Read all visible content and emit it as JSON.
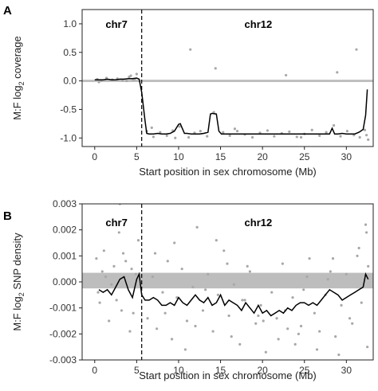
{
  "chart_data": [
    {
      "panel": "A",
      "type": "scatter",
      "title": "",
      "xlabel": "Start position in sex chromosome (Mb)",
      "ylabel": "M:F log2 coverage",
      "ylabel_parts": [
        "M:F log",
        "2",
        " coverage"
      ],
      "xlim": [
        -1.5,
        33.2
      ],
      "ylim": [
        -1.15,
        1.25
      ],
      "xticks": [
        0,
        5,
        10,
        15,
        20,
        25,
        30
      ],
      "yticks": [
        1.0,
        0.5,
        0.0,
        -0.5,
        -1.0
      ],
      "ytick_labels": [
        "1.0",
        "0.5",
        "0.0",
        "-0.5",
        "-1.0"
      ],
      "grid": false,
      "boundary_x": 5.6,
      "reference_band": {
        "y": 0.0,
        "half_width": 0.02,
        "color": "#bdbdbd"
      },
      "region_labels": [
        {
          "text": "chr7",
          "x": 2.6,
          "y": 1.0
        },
        {
          "text": "chr12",
          "x": 19.5,
          "y": 1.0
        }
      ],
      "series": [
        {
          "kind": "smoothed_line",
          "color": "#000000",
          "x": [
            0,
            0.5,
            1,
            1.5,
            2,
            2.5,
            3,
            3.5,
            4,
            4.5,
            5,
            5.3,
            5.6,
            5.8,
            6.0,
            6.2,
            6.5,
            7,
            7.5,
            8,
            8.5,
            9,
            9.5,
            10,
            10.2,
            10.4,
            10.7,
            11,
            11.5,
            12,
            12.5,
            13,
            13.5,
            13.8,
            14,
            14.5,
            14.8,
            15.1,
            15.5,
            16,
            17,
            18,
            19,
            20,
            21,
            22,
            23,
            24,
            25,
            26,
            27,
            28,
            28.3,
            28.6,
            29,
            29.5,
            30,
            30.5,
            31,
            31.5,
            32,
            32.3,
            32.5
          ],
          "y": [
            0.02,
            0.02,
            0.02,
            0.03,
            0.02,
            0.02,
            0.03,
            0.03,
            0.04,
            0.04,
            0.05,
            0.03,
            -0.2,
            -0.45,
            -0.7,
            -0.92,
            -0.93,
            -0.93,
            -0.92,
            -0.93,
            -0.93,
            -0.92,
            -0.88,
            -0.76,
            -0.75,
            -0.82,
            -0.92,
            -0.92,
            -0.93,
            -0.93,
            -0.93,
            -0.92,
            -0.9,
            -0.58,
            -0.57,
            -0.58,
            -0.88,
            -0.93,
            -0.93,
            -0.93,
            -0.93,
            -0.93,
            -0.93,
            -0.93,
            -0.93,
            -0.93,
            -0.93,
            -0.93,
            -0.93,
            -0.93,
            -0.93,
            -0.93,
            -0.83,
            -0.93,
            -0.93,
            -0.92,
            -0.93,
            -0.93,
            -0.93,
            -0.9,
            -0.85,
            -0.6,
            -0.15
          ]
        },
        {
          "kind": "points",
          "color": "#a8a8a8",
          "x": [
            0.3,
            0.8,
            1.4,
            2.1,
            2.7,
            3.3,
            4.1,
            4.6,
            5.0,
            0.5,
            3.8,
            4.3,
            4.8,
            6.2,
            7.0,
            7.8,
            8.6,
            9.3,
            10.1,
            11.2,
            11.9,
            12.6,
            13.4,
            14.2,
            15.3,
            16.1,
            17.0,
            17.9,
            18.8,
            19.7,
            20.6,
            21.4,
            22.3,
            23.2,
            24.1,
            25.0,
            25.9,
            26.8,
            27.6,
            28.5,
            29.3,
            30.1,
            30.9,
            31.6,
            32.2,
            11.4,
            14.4,
            22.8,
            28.9,
            31.2,
            6.8,
            9.6,
            16.7,
            24.6,
            32.4,
            32.6
          ],
          "y": [
            0.03,
            0.0,
            0.05,
            0.02,
            0.04,
            0.01,
            0.07,
            0.02,
            0.12,
            -0.02,
            0.0,
            0.09,
            0.03,
            -0.88,
            -0.98,
            -0.9,
            -0.96,
            -0.87,
            -0.8,
            -0.99,
            -0.91,
            -0.88,
            -0.97,
            -0.55,
            -0.9,
            -0.96,
            -0.88,
            -0.94,
            -0.99,
            -0.91,
            -0.87,
            -0.97,
            -0.92,
            -0.89,
            -0.98,
            -0.93,
            -0.86,
            -0.96,
            -0.9,
            -0.78,
            -0.97,
            -0.88,
            -0.95,
            -0.99,
            -0.86,
            0.55,
            0.22,
            0.1,
            0.15,
            0.55,
            -0.82,
            -1.0,
            -0.84,
            -0.99,
            -0.95,
            -1.03
          ]
        }
      ]
    },
    {
      "panel": "B",
      "type": "scatter",
      "title": "",
      "xlabel": "Start position in sex chromosome (Mb)",
      "ylabel": "M:F log2 SNP density",
      "ylabel_parts": [
        "M:F log",
        "2",
        " SNP density"
      ],
      "xlim": [
        -1.5,
        33.2
      ],
      "ylim": [
        -0.003,
        0.003
      ],
      "xticks": [
        0,
        5,
        10,
        15,
        20,
        25,
        30
      ],
      "yticks": [
        0.003,
        0.002,
        0.001,
        0.0,
        -0.001,
        -0.002,
        -0.003
      ],
      "ytick_labels": [
        "0.003",
        "0.002",
        "0.001",
        "0.000",
        "-0.001",
        "-0.002",
        "-0.003"
      ],
      "grid": false,
      "boundary_x": 5.6,
      "reference_band": {
        "y": 5e-05,
        "half_width": 0.0003,
        "color": "#bdbdbd"
      },
      "region_labels": [
        {
          "text": "chr7",
          "x": 2.6,
          "y": 0.0023
        },
        {
          "text": "chr12",
          "x": 19.5,
          "y": 0.0023
        }
      ],
      "series": [
        {
          "kind": "smoothed_line",
          "color": "#000000",
          "x": [
            0.5,
            1,
            1.5,
            2,
            2.5,
            3,
            3.5,
            4,
            4.5,
            5,
            5.3,
            5.6,
            6,
            6.5,
            7,
            7.5,
            8,
            8.5,
            9,
            9.5,
            10,
            10.5,
            11,
            11.5,
            12,
            12.5,
            13,
            13.5,
            14,
            14.5,
            15,
            15.5,
            16,
            16.5,
            17,
            17.5,
            18,
            18.5,
            19,
            19.5,
            20,
            20.5,
            21,
            21.5,
            22,
            22.5,
            23,
            23.5,
            24,
            24.5,
            25,
            25.5,
            26,
            26.5,
            27,
            27.5,
            28,
            28.5,
            29,
            29.5,
            30,
            30.5,
            31,
            31.5,
            32,
            32.3,
            32.6
          ],
          "y": [
            -0.0003,
            -0.0004,
            -0.0003,
            -0.0005,
            -0.0002,
            0.0001,
            0.0002,
            -0.0003,
            -0.0006,
            0.0001,
            0.0003,
            -0.0005,
            -0.0007,
            -0.0007,
            -0.0006,
            -0.0007,
            -0.0009,
            -0.0009,
            -0.0008,
            -0.0009,
            -0.0006,
            -0.0008,
            -0.0009,
            -0.0007,
            -0.0005,
            -0.0007,
            -0.0008,
            -0.0006,
            -0.0009,
            -0.0008,
            -0.0005,
            -0.0009,
            -0.0007,
            -0.0008,
            -0.0009,
            -0.0011,
            -0.0008,
            -0.001,
            -0.0012,
            -0.0009,
            -0.0012,
            -0.0011,
            -0.0013,
            -0.0012,
            -0.0011,
            -0.0012,
            -0.001,
            -0.0011,
            -0.0009,
            -0.0008,
            -0.0008,
            -0.0009,
            -0.0008,
            -0.0009,
            -0.0007,
            -0.0005,
            -0.0003,
            -0.0004,
            -0.0005,
            -0.0007,
            -0.0006,
            -0.0005,
            -0.0004,
            -0.0003,
            -0.0002,
            0.0003,
            0.0001
          ]
        },
        {
          "kind": "points",
          "color": "#a8a8a8",
          "x": [
            0.2,
            0.6,
            1.1,
            1.7,
            2.3,
            2.9,
            3.2,
            3.7,
            4.2,
            4.9,
            0.4,
            1.3,
            2.6,
            3.4,
            4.6,
            5.2,
            0.9,
            2.0,
            3.0,
            4.4,
            6.3,
            6.9,
            7.4,
            8.1,
            8.7,
            9.2,
            9.8,
            10.4,
            11.0,
            11.7,
            12.2,
            12.9,
            13.5,
            14.1,
            14.7,
            15.4,
            16.0,
            16.6,
            17.3,
            17.9,
            18.5,
            19.2,
            19.8,
            20.4,
            21.1,
            21.7,
            22.4,
            23.0,
            23.6,
            24.3,
            24.9,
            25.6,
            26.2,
            26.8,
            27.5,
            28.1,
            28.7,
            29.4,
            30.0,
            30.7,
            31.3,
            31.8,
            32.3,
            32.5,
            7.2,
            10.8,
            14.5,
            18.2,
            21.9,
            25.3,
            29.1,
            12.0,
            15.8,
            20.1,
            23.9,
            27.8,
            31.5,
            32.4,
            8.4,
            13.2,
            17.6,
            22.7,
            26.5,
            30.4,
            32.6,
            9.5,
            16.3,
            19.5,
            24.6,
            28.4
          ],
          "y": [
            0.0009,
            -0.0008,
            0.0012,
            -0.0015,
            0.0006,
            0.0019,
            -0.0011,
            0.0008,
            -0.0019,
            0.0003,
            -0.0004,
            0.0002,
            -0.0007,
            0.0011,
            -0.0012,
            0.0016,
            0.0004,
            -0.0001,
            0.003,
            0.0005,
            -0.0014,
            0.0002,
            -0.0018,
            -0.0004,
            0.0008,
            -0.0022,
            -0.0006,
            0.0005,
            -0.0015,
            -0.0002,
            0.0021,
            -0.0011,
            0.0003,
            -0.0019,
            -0.0005,
            0.0012,
            -0.0013,
            -0.0001,
            -0.0024,
            -0.0007,
            0.0004,
            -0.0016,
            -0.0009,
            -0.0027,
            -0.0004,
            -0.0014,
            0.0007,
            -0.0018,
            -0.0006,
            -0.002,
            -0.0003,
            0.0009,
            -0.0012,
            -0.0019,
            -0.0005,
            0.0004,
            -0.0021,
            -0.0009,
            0.0003,
            -0.0016,
            0.001,
            -0.0008,
            0.0022,
            -0.0025,
            0.0011,
            -0.0026,
            0.0016,
            0.0006,
            -0.0022,
            0.0002,
            -0.0028,
            -0.0017,
            0.0007,
            -0.0015,
            -0.0024,
            0.0001,
            0.0013,
            0.0019,
            -0.0012,
            -0.0003,
            -0.0007,
            -0.0011,
            -0.0026,
            -0.0014,
            0.0006,
            0.0015,
            -0.0021,
            -0.0013,
            -0.0017,
            0.0009
          ]
        }
      ]
    }
  ]
}
